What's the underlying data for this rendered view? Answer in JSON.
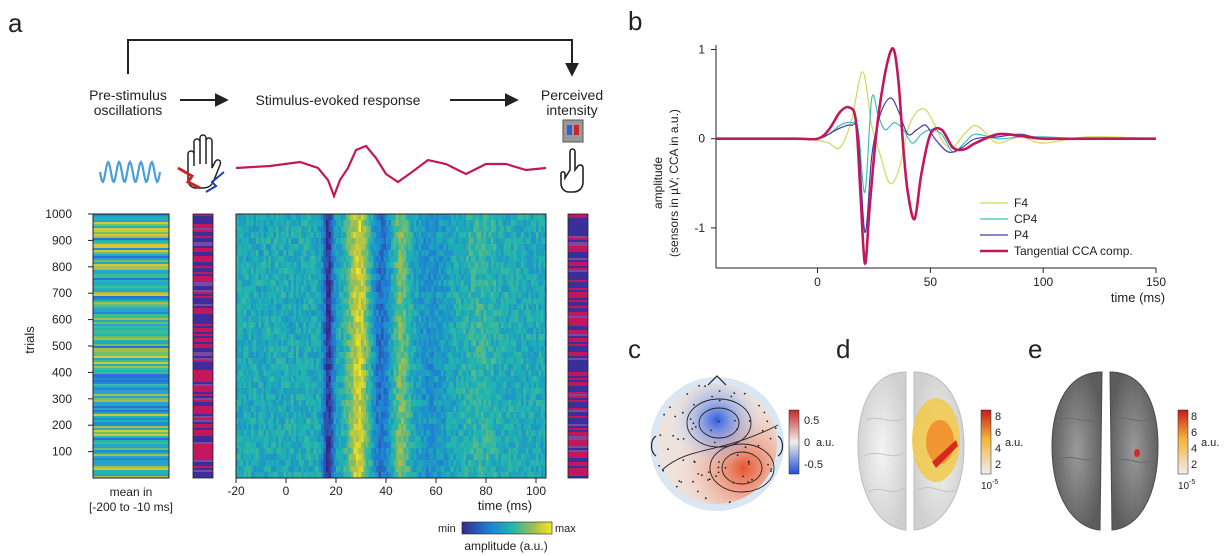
{
  "panels": {
    "a": "a",
    "b": "b",
    "c": "c",
    "d": "d",
    "e": "e"
  },
  "flow": {
    "pre_stimulus": [
      "Pre-stimulus",
      "oscillations"
    ],
    "evoked": "Stimulus-evoked response",
    "perceived": [
      "Perceived",
      "intensity"
    ]
  },
  "heatmap": {
    "ylabel": "trials",
    "yticks": [
      "1000",
      "900",
      "800",
      "700",
      "600",
      "500",
      "400",
      "300",
      "200",
      "100"
    ],
    "xticks": [
      "-20",
      "0",
      "20",
      "40",
      "60",
      "80",
      "100"
    ],
    "xlabel": "time (ms)",
    "mean_label": [
      "mean in",
      "[-200 to -10 ms]"
    ],
    "cbar_min": "min",
    "cbar_max": "max",
    "cbar_label": "amplitude (a.u.)"
  },
  "chart_data": {
    "type": "line",
    "ylabel": [
      "amplitude",
      "(sensors in µV; CCA in a.u.)"
    ],
    "xlabel": "time (ms)",
    "xlim": [
      -45,
      150
    ],
    "ylim": [
      -1.45,
      1.05
    ],
    "yticks": [
      "1",
      "0",
      "-1"
    ],
    "xticks": [
      "0",
      "50",
      "100",
      "150"
    ],
    "legend": [
      "F4",
      "CP4",
      "P4",
      "Tangential CCA comp."
    ],
    "colors": {
      "F4": "#d6d65a",
      "CP4": "#3fbfbf",
      "P4": "#4a3aa8",
      "CCA": "#c2185b"
    },
    "series": [
      {
        "name": "F4",
        "color": "#d6d65a",
        "width": 1.2,
        "x": [
          -45,
          -10,
          0,
          5,
          10,
          15,
          20,
          24,
          28,
          32,
          36,
          40,
          44,
          48,
          52,
          56,
          60,
          65,
          70,
          75,
          80,
          90,
          100,
          120,
          150
        ],
        "y": [
          0,
          0,
          -0.02,
          -0.05,
          -0.1,
          0.2,
          0.75,
          0.15,
          -0.2,
          -0.5,
          -0.35,
          0.1,
          0.3,
          0.32,
          0.15,
          -0.05,
          -0.1,
          0.05,
          0.15,
          0.05,
          -0.05,
          0.02,
          -0.05,
          0.02,
          0
        ]
      },
      {
        "name": "CP4",
        "color": "#3fbfbf",
        "width": 1.2,
        "x": [
          -45,
          -10,
          0,
          5,
          10,
          15,
          18,
          21,
          24,
          27,
          30,
          34,
          38,
          42,
          46,
          50,
          55,
          60,
          65,
          70,
          80,
          90,
          100,
          120,
          150
        ],
        "y": [
          0,
          0,
          0,
          0.05,
          0.15,
          0.18,
          0.1,
          -0.6,
          0.45,
          0.25,
          0.1,
          0.18,
          0.1,
          -0.05,
          0.05,
          0.1,
          0.05,
          -0.15,
          -0.05,
          0.05,
          0,
          0.02,
          0.02,
          0,
          0
        ]
      },
      {
        "name": "P4",
        "color": "#4a3aa8",
        "width": 1.2,
        "x": [
          -45,
          -10,
          0,
          5,
          10,
          15,
          18,
          21,
          24,
          27,
          30,
          33,
          36,
          40,
          44,
          48,
          52,
          58,
          64,
          70,
          80,
          90,
          100,
          120,
          150
        ],
        "y": [
          0,
          0,
          0,
          0.05,
          0.12,
          0.15,
          0.05,
          -1.05,
          -0.2,
          0.2,
          0.4,
          0.45,
          0.3,
          0.05,
          0.1,
          0.15,
          0,
          -0.15,
          -0.1,
          0,
          0.02,
          0.05,
          0,
          0,
          0
        ]
      },
      {
        "name": "Tangential CCA comp.",
        "color": "#c2185b",
        "width": 2.6,
        "x": [
          -45,
          -10,
          0,
          5,
          10,
          14,
          17,
          19,
          21,
          23,
          26,
          29,
          32,
          34,
          36,
          38,
          40,
          43,
          46,
          50,
          55,
          60,
          65,
          70,
          80,
          90,
          100,
          120,
          150
        ],
        "y": [
          0,
          0,
          0,
          0.1,
          0.3,
          0.35,
          0.2,
          -0.6,
          -1.4,
          -0.8,
          0.05,
          0.6,
          0.95,
          0.98,
          0.6,
          -0.1,
          -0.6,
          -0.9,
          -0.4,
          0.05,
          0.1,
          -0.1,
          -0.12,
          -0.05,
          0.05,
          0.03,
          0,
          0,
          0
        ]
      }
    ]
  },
  "topo": {
    "ticks": [
      "0.5",
      "0",
      "-0.5"
    ],
    "unit": "a.u."
  },
  "brain_scale": {
    "ticks": [
      "8",
      "6",
      "4",
      "2"
    ],
    "exp": "10",
    "exp_sup": "-5",
    "unit": "a.u."
  }
}
